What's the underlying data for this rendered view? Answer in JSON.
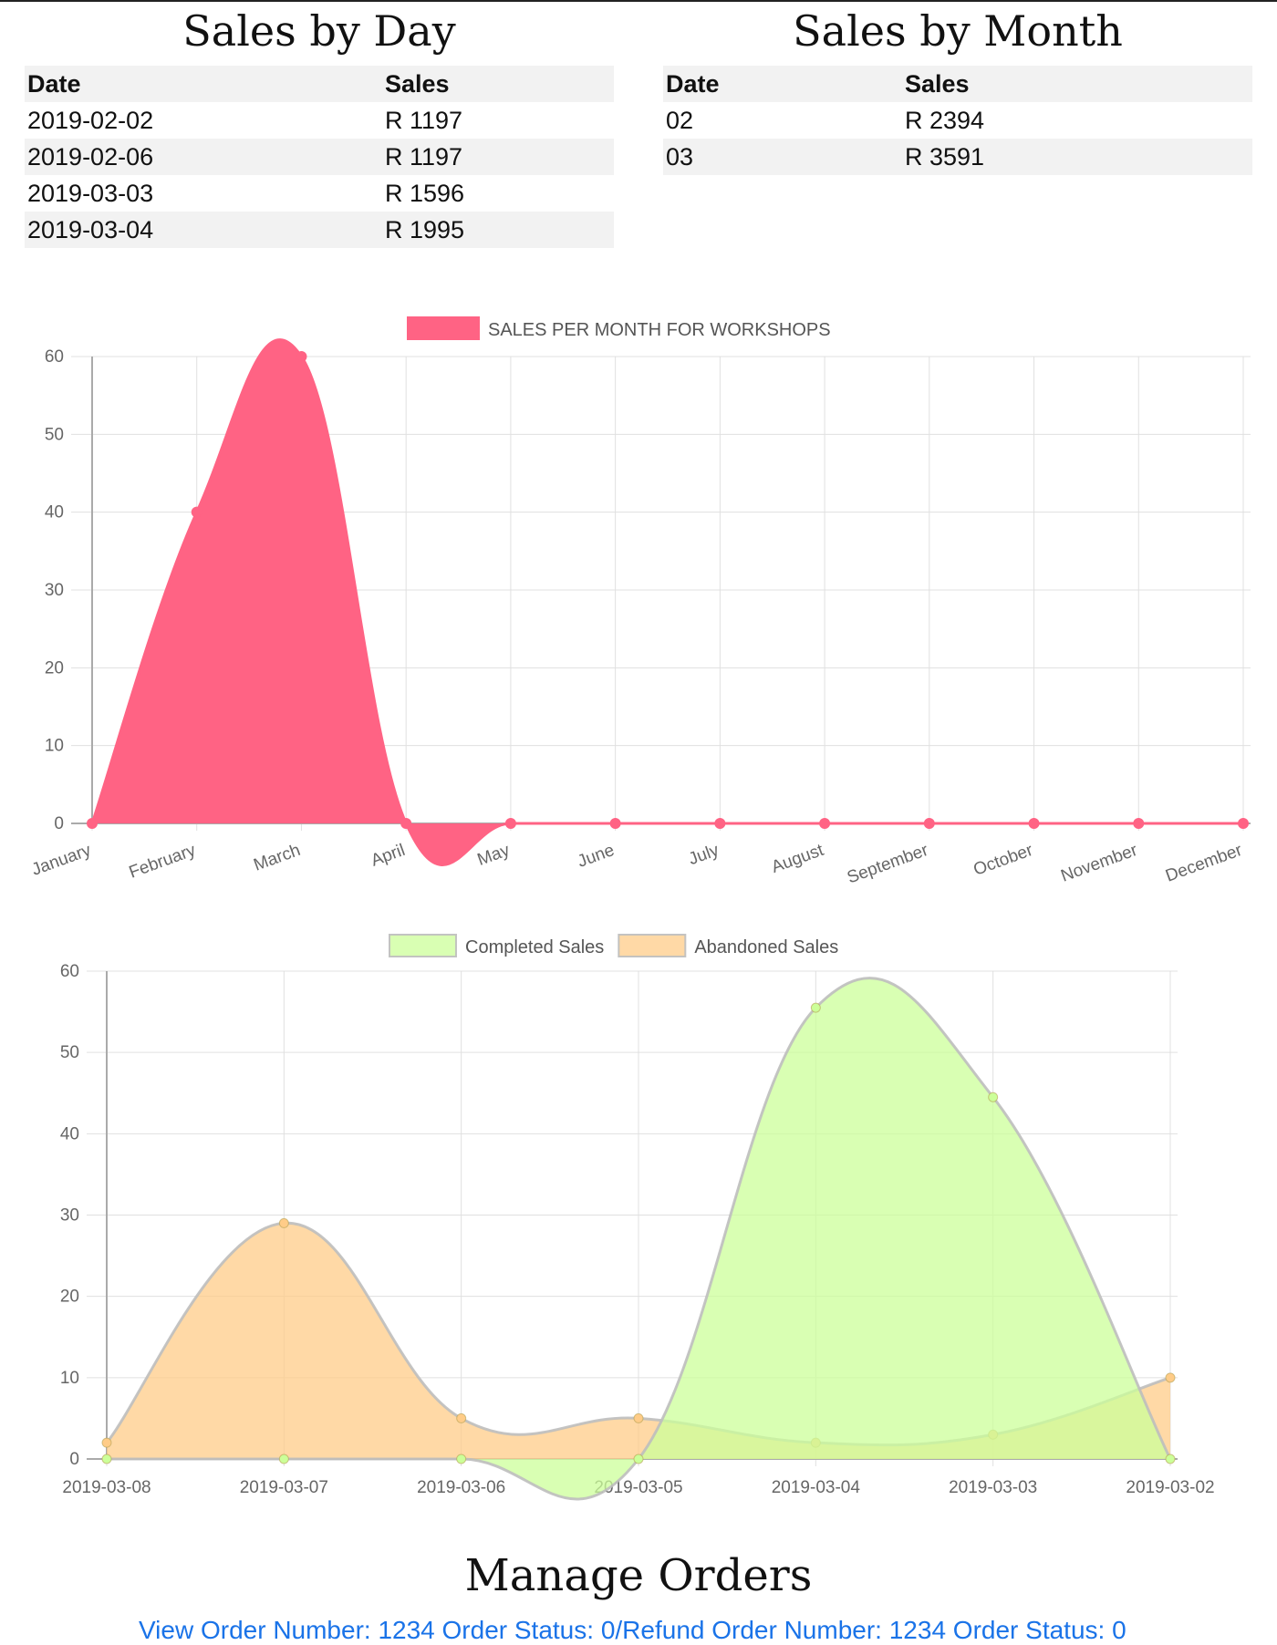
{
  "sales_by_day": {
    "title": "Sales by Day",
    "headers": [
      "Date",
      "Sales"
    ],
    "rows": [
      [
        "2019-02-02",
        "R 1197"
      ],
      [
        "2019-02-06",
        "R 1197"
      ],
      [
        "2019-03-03",
        "R 1596"
      ],
      [
        "2019-03-04",
        "R 1995"
      ]
    ]
  },
  "sales_by_month": {
    "title": "Sales by Month",
    "headers": [
      "Date",
      "Sales"
    ],
    "rows": [
      [
        "02",
        "R 2394"
      ],
      [
        "03",
        "R 3591"
      ]
    ]
  },
  "chart_data": [
    {
      "type": "area",
      "categories": [
        "January",
        "February",
        "March",
        "April",
        "May",
        "June",
        "July",
        "August",
        "September",
        "October",
        "November",
        "December"
      ],
      "series": [
        {
          "name": "SALES PER MONTH FOR WORKSHOPS",
          "values": [
            0,
            40,
            60,
            0,
            0,
            0,
            0,
            0,
            0,
            0,
            0,
            0
          ],
          "color": "#ff6384"
        }
      ],
      "ylim": [
        0,
        60
      ],
      "yticks": [
        0,
        10,
        20,
        30,
        40,
        50,
        60
      ],
      "grid": true,
      "legend": "top-center"
    },
    {
      "type": "area",
      "categories": [
        "2019-03-08",
        "2019-03-07",
        "2019-03-06",
        "2019-03-05",
        "2019-03-04",
        "2019-03-03",
        "2019-03-02"
      ],
      "series": [
        {
          "name": "Completed Sales",
          "values": [
            0,
            0,
            0,
            0,
            55.5,
            44.5,
            0
          ],
          "color": "#ccff99"
        },
        {
          "name": "Abandoned Sales",
          "values": [
            2,
            29,
            5,
            5,
            2,
            3,
            10
          ],
          "color": "#ffcc88"
        }
      ],
      "ylim": [
        0,
        60
      ],
      "yticks": [
        0,
        10,
        20,
        30,
        40,
        50,
        60
      ],
      "grid": true,
      "legend": "top-center"
    }
  ],
  "manage_orders": {
    "title": "Manage Orders",
    "link_text": "View Order Number: 1234 Order Status: 0/Refund Order Number: 1234 Order Status: 0"
  }
}
